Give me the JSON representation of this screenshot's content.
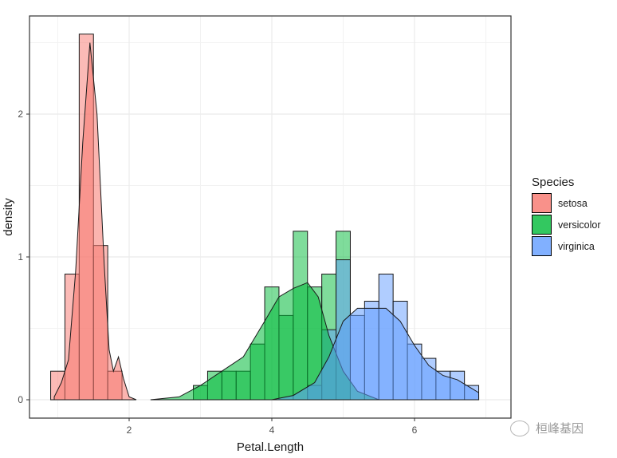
{
  "chart_data": {
    "type": "histogram+density",
    "title": "",
    "xlabel": "Petal.Length",
    "ylabel": "density",
    "xlim": [
      0.9,
      7.0
    ],
    "ylim": [
      0,
      2.56
    ],
    "x_ticks": [
      2,
      4,
      6
    ],
    "y_ticks": [
      0,
      1,
      2
    ],
    "grid": true,
    "legend_position": "right",
    "legend_title": "Species",
    "bin_width": 0.2,
    "bin_start": 0.9,
    "series": [
      {
        "name": "setosa",
        "color": "#F8766D",
        "bins": {
          "start_index": 0,
          "values": [
            0.2,
            0.88,
            2.56,
            1.08,
            0.2
          ]
        },
        "density": [
          [
            0.95,
            0.02
          ],
          [
            1.05,
            0.12
          ],
          [
            1.15,
            0.28
          ],
          [
            1.25,
            0.9
          ],
          [
            1.35,
            1.8
          ],
          [
            1.45,
            2.5
          ],
          [
            1.55,
            2.0
          ],
          [
            1.65,
            0.95
          ],
          [
            1.72,
            0.35
          ],
          [
            1.78,
            0.2
          ],
          [
            1.85,
            0.3
          ],
          [
            1.92,
            0.15
          ],
          [
            2.0,
            0.02
          ],
          [
            2.1,
            0.0
          ]
        ]
      },
      {
        "name": "versicolor",
        "color": "#00BA38",
        "bins": {
          "start_index": 10,
          "values": [
            0.1,
            0.2,
            0.2,
            0.2,
            0.39,
            0.79,
            0.59,
            1.18,
            0.79,
            0.88,
            1.18
          ]
        },
        "density": [
          [
            2.3,
            0.0
          ],
          [
            2.7,
            0.02
          ],
          [
            3.0,
            0.1
          ],
          [
            3.3,
            0.2
          ],
          [
            3.6,
            0.3
          ],
          [
            3.9,
            0.55
          ],
          [
            4.1,
            0.72
          ],
          [
            4.3,
            0.78
          ],
          [
            4.5,
            0.82
          ],
          [
            4.65,
            0.72
          ],
          [
            4.8,
            0.45
          ],
          [
            5.0,
            0.2
          ],
          [
            5.2,
            0.06
          ],
          [
            5.5,
            0.0
          ]
        ]
      },
      {
        "name": "virginica",
        "color": "#619CFF",
        "bins": {
          "start_index": 18,
          "values": [
            0.1,
            0.49,
            0.98,
            0.59,
            0.69,
            0.88,
            0.69,
            0.39,
            0.29,
            0.2,
            0.2,
            0.1
          ]
        },
        "density": [
          [
            4.0,
            0.0
          ],
          [
            4.3,
            0.03
          ],
          [
            4.6,
            0.12
          ],
          [
            4.8,
            0.3
          ],
          [
            5.0,
            0.55
          ],
          [
            5.2,
            0.64
          ],
          [
            5.4,
            0.64
          ],
          [
            5.6,
            0.64
          ],
          [
            5.8,
            0.55
          ],
          [
            6.0,
            0.38
          ],
          [
            6.2,
            0.24
          ],
          [
            6.4,
            0.17
          ],
          [
            6.6,
            0.14
          ],
          [
            6.8,
            0.08
          ],
          [
            6.9,
            0.05
          ]
        ]
      }
    ]
  },
  "legend": {
    "title": "Species",
    "items": [
      {
        "label": "setosa",
        "color": "#F8766D"
      },
      {
        "label": "versicolor",
        "color": "#00BA38"
      },
      {
        "label": "virginica",
        "color": "#619CFF"
      }
    ]
  },
  "watermark": {
    "text": "桓峰基因"
  }
}
